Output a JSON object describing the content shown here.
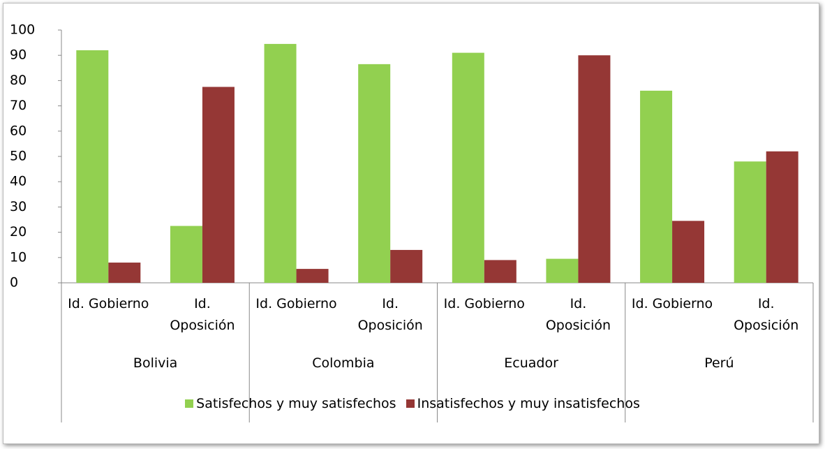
{
  "chart_data": {
    "type": "bar",
    "groups": [
      "Bolivia",
      "Colombia",
      "Ecuador",
      "Perú"
    ],
    "categories": [
      "Id. Gobierno",
      "Id. Oposición",
      "Id. Gobierno",
      "Id. Oposición",
      "Id. Gobierno",
      "Id. Oposición",
      "Id. Gobierno",
      "Id. Oposición"
    ],
    "series": [
      {
        "name": "Satisfechos y muy satisfechos",
        "color": "#92d050",
        "values": [
          92,
          22.5,
          94.5,
          86.5,
          91,
          9.5,
          76,
          48
        ]
      },
      {
        "name": "Insatisfechos y muy insatisfechos",
        "color": "#953735",
        "values": [
          8,
          77.5,
          5.5,
          13,
          9,
          90,
          24.5,
          52
        ]
      }
    ],
    "ylim": [
      0,
      100
    ],
    "yticks": [
      0,
      10,
      20,
      30,
      40,
      50,
      60,
      70,
      80,
      90,
      100
    ],
    "legend": "bottom"
  }
}
